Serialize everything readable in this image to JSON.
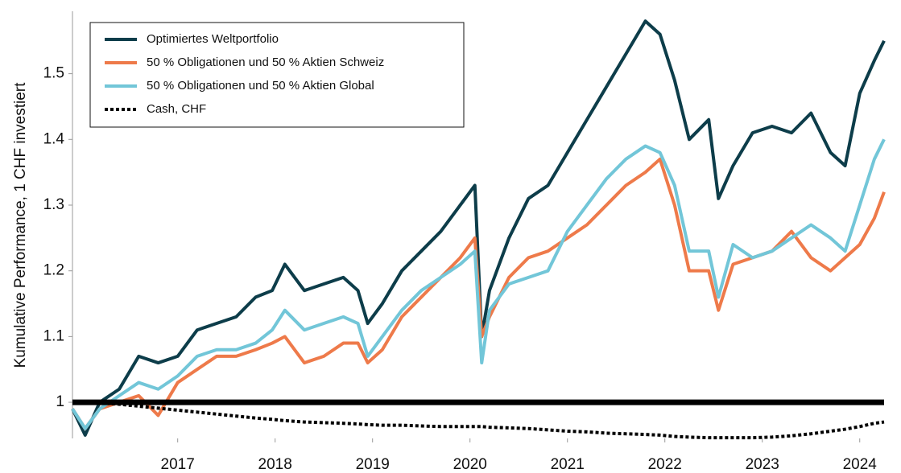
{
  "chart_data": {
    "type": "line",
    "y_label": "Kumulative Performance, 1 CHF investiert",
    "x": [
      2015.92,
      2016.05,
      2016.2,
      2016.4,
      2016.6,
      2016.8,
      2017.0,
      2017.2,
      2017.4,
      2017.6,
      2017.8,
      2017.97,
      2018.1,
      2018.3,
      2018.5,
      2018.7,
      2018.85,
      2018.95,
      2019.1,
      2019.3,
      2019.5,
      2019.7,
      2019.9,
      2020.05,
      2020.12,
      2020.2,
      2020.4,
      2020.6,
      2020.8,
      2021.0,
      2021.2,
      2021.4,
      2021.6,
      2021.8,
      2021.95,
      2022.1,
      2022.25,
      2022.45,
      2022.55,
      2022.7,
      2022.9,
      2023.1,
      2023.3,
      2023.5,
      2023.7,
      2023.85,
      2024.0,
      2024.15,
      2024.25
    ],
    "series": [
      {
        "name": "Optimiertes Weltportfolio",
        "color": "#0d3d4a",
        "line_style": "solid",
        "values": [
          0.99,
          0.95,
          1.0,
          1.02,
          1.07,
          1.06,
          1.07,
          1.11,
          1.12,
          1.13,
          1.16,
          1.17,
          1.21,
          1.17,
          1.18,
          1.19,
          1.17,
          1.12,
          1.15,
          1.2,
          1.23,
          1.26,
          1.3,
          1.33,
          1.1,
          1.17,
          1.25,
          1.31,
          1.33,
          1.38,
          1.43,
          1.48,
          1.53,
          1.58,
          1.56,
          1.49,
          1.4,
          1.43,
          1.31,
          1.36,
          1.41,
          1.42,
          1.41,
          1.44,
          1.38,
          1.36,
          1.47,
          1.52,
          1.55
        ]
      },
      {
        "name": "50 % Obligationen und 50 % Aktien Schweiz",
        "color": "#ee7a4a",
        "line_style": "solid",
        "values": [
          0.99,
          0.96,
          0.99,
          1.0,
          1.01,
          0.98,
          1.03,
          1.05,
          1.07,
          1.07,
          1.08,
          1.09,
          1.1,
          1.06,
          1.07,
          1.09,
          1.09,
          1.06,
          1.08,
          1.13,
          1.16,
          1.19,
          1.22,
          1.25,
          1.1,
          1.13,
          1.19,
          1.22,
          1.23,
          1.25,
          1.27,
          1.3,
          1.33,
          1.35,
          1.37,
          1.3,
          1.2,
          1.2,
          1.14,
          1.21,
          1.22,
          1.23,
          1.26,
          1.22,
          1.2,
          1.22,
          1.24,
          1.28,
          1.32
        ]
      },
      {
        "name": "50 % Obligationen und 50 % Aktien Global",
        "color": "#72c6d8",
        "line_style": "solid",
        "values": [
          0.99,
          0.96,
          0.99,
          1.01,
          1.03,
          1.02,
          1.04,
          1.07,
          1.08,
          1.08,
          1.09,
          1.11,
          1.14,
          1.11,
          1.12,
          1.13,
          1.12,
          1.07,
          1.1,
          1.14,
          1.17,
          1.19,
          1.21,
          1.23,
          1.06,
          1.14,
          1.18,
          1.19,
          1.2,
          1.26,
          1.3,
          1.34,
          1.37,
          1.39,
          1.38,
          1.33,
          1.23,
          1.23,
          1.16,
          1.24,
          1.22,
          1.23,
          1.25,
          1.27,
          1.25,
          1.23,
          1.3,
          1.37,
          1.4
        ]
      },
      {
        "name": "Cash, CHF",
        "color": "#000000",
        "line_style": "dotted",
        "values": [
          1.0,
          1.0,
          0.999,
          0.997,
          0.994,
          0.991,
          0.988,
          0.985,
          0.982,
          0.979,
          0.976,
          0.974,
          0.972,
          0.97,
          0.969,
          0.968,
          0.967,
          0.966,
          0.965,
          0.965,
          0.964,
          0.963,
          0.963,
          0.963,
          0.963,
          0.962,
          0.961,
          0.96,
          0.958,
          0.956,
          0.955,
          0.953,
          0.952,
          0.951,
          0.95,
          0.948,
          0.947,
          0.946,
          0.946,
          0.946,
          0.946,
          0.947,
          0.949,
          0.952,
          0.956,
          0.959,
          0.963,
          0.968,
          0.97
        ]
      }
    ],
    "reference_line": {
      "value": 1,
      "color": "#000000"
    },
    "xlim": [
      2015.92,
      2024.25
    ],
    "xticks": [
      2017,
      2018,
      2019,
      2020,
      2021,
      2022,
      2023,
      2024
    ],
    "ylim": [
      0.945,
      1.595
    ],
    "yticks": [
      1,
      1.1,
      1.2,
      1.3,
      1.4,
      1.5
    ],
    "grid": false,
    "legend": "upper left"
  }
}
